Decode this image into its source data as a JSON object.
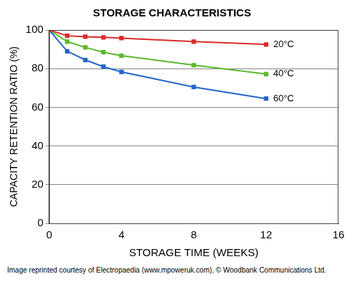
{
  "chart_data": {
    "type": "line",
    "title": "STORAGE CHARACTERISTICS",
    "x_label": "STORAGE TIME (WEEKS)",
    "y_label": "CAPACITY RETENTION RATIO (%)",
    "x": [
      0,
      1,
      2,
      3,
      4,
      8,
      12
    ],
    "series": [
      {
        "name": "20°C",
        "color": "#d92b2b",
        "values": [
          100,
          97,
          96.5,
          96.2,
          95.8,
          94,
          92.5
        ]
      },
      {
        "name": "40°C",
        "color": "#5cb82e",
        "values": [
          100,
          94,
          91,
          88.5,
          86.7,
          81.8,
          77.2
        ]
      },
      {
        "name": "60°C",
        "color": "#2466c8",
        "values": [
          100,
          89,
          84.5,
          81,
          78.3,
          70.5,
          64.5
        ]
      }
    ],
    "marker": "square",
    "xlim": [
      0,
      16
    ],
    "xticks": [
      0,
      4,
      8,
      12,
      16
    ],
    "ylim": [
      0,
      100
    ],
    "yticks": [
      0,
      20,
      40,
      60,
      80,
      100
    ],
    "grid": "y",
    "caption": "Image reprinted courtesy of Electropaedia (www.mpoweruk.com), © Woodbank Communications Ltd."
  }
}
